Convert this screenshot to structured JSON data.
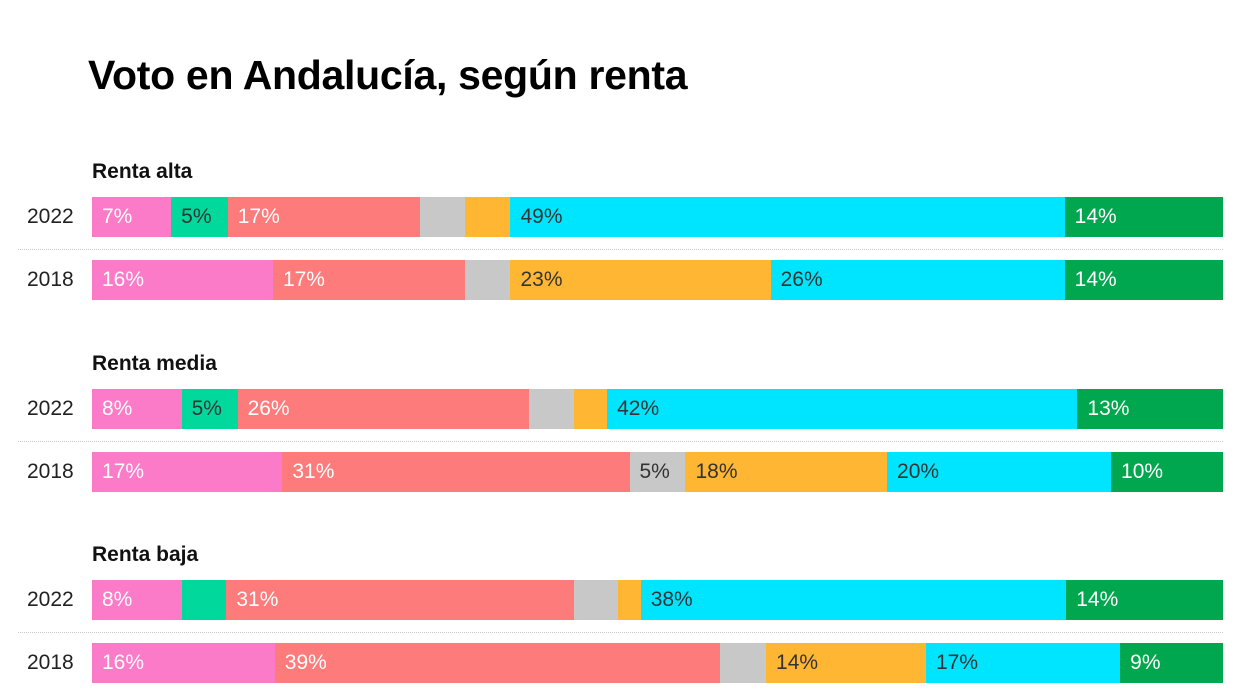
{
  "title": "Voto en Andalucía, según renta",
  "chart_data": {
    "type": "bar",
    "orientation": "horizontal",
    "stacked": true,
    "total": 100,
    "colors": {
      "pink": "#fb7bc8",
      "teal": "#00d89c",
      "red": "#fd7b7b",
      "gray": "#c8c8c8",
      "orange": "#ffb733",
      "cyan": "#00e5ff",
      "green": "#00a74e"
    },
    "label_colors": {
      "pink": "#ffffff",
      "teal": "#333333",
      "red": "#ffffff",
      "gray": "#333333",
      "orange": "#333333",
      "cyan": "#333333",
      "green": "#ffffff"
    },
    "groups": [
      {
        "label": "Renta alta",
        "rows": [
          {
            "year": "2022",
            "segments": [
              {
                "color": "pink",
                "value": 7,
                "label": "7%"
              },
              {
                "color": "teal",
                "value": 5,
                "label": "5%"
              },
              {
                "color": "red",
                "value": 17,
                "label": "17%"
              },
              {
                "color": "gray",
                "value": 4,
                "label": ""
              },
              {
                "color": "orange",
                "value": 4,
                "label": ""
              },
              {
                "color": "cyan",
                "value": 49,
                "label": "49%"
              },
              {
                "color": "green",
                "value": 14,
                "label": "14%"
              }
            ]
          },
          {
            "year": "2018",
            "segments": [
              {
                "color": "pink",
                "value": 16,
                "label": "16%"
              },
              {
                "color": "red",
                "value": 17,
                "label": "17%"
              },
              {
                "color": "gray",
                "value": 4,
                "label": ""
              },
              {
                "color": "orange",
                "value": 23,
                "label": "23%"
              },
              {
                "color": "cyan",
                "value": 26,
                "label": "26%"
              },
              {
                "color": "green",
                "value": 14,
                "label": "14%"
              }
            ]
          }
        ]
      },
      {
        "label": "Renta media",
        "rows": [
          {
            "year": "2022",
            "segments": [
              {
                "color": "pink",
                "value": 8,
                "label": "8%"
              },
              {
                "color": "teal",
                "value": 5,
                "label": "5%"
              },
              {
                "color": "red",
                "value": 26,
                "label": "26%"
              },
              {
                "color": "gray",
                "value": 4,
                "label": ""
              },
              {
                "color": "orange",
                "value": 3,
                "label": ""
              },
              {
                "color": "cyan",
                "value": 42,
                "label": "42%"
              },
              {
                "color": "green",
                "value": 13,
                "label": "13%"
              }
            ]
          },
          {
            "year": "2018",
            "segments": [
              {
                "color": "pink",
                "value": 17,
                "label": "17%"
              },
              {
                "color": "red",
                "value": 31,
                "label": "31%"
              },
              {
                "color": "gray",
                "value": 5,
                "label": "5%"
              },
              {
                "color": "orange",
                "value": 18,
                "label": "18%"
              },
              {
                "color": "cyan",
                "value": 20,
                "label": "20%"
              },
              {
                "color": "green",
                "value": 10,
                "label": "10%"
              }
            ]
          }
        ]
      },
      {
        "label": "Renta baja",
        "rows": [
          {
            "year": "2022",
            "segments": [
              {
                "color": "pink",
                "value": 8,
                "label": "8%"
              },
              {
                "color": "teal",
                "value": 4,
                "label": ""
              },
              {
                "color": "red",
                "value": 31,
                "label": "31%"
              },
              {
                "color": "gray",
                "value": 4,
                "label": ""
              },
              {
                "color": "orange",
                "value": 2,
                "label": ""
              },
              {
                "color": "cyan",
                "value": 38,
                "label": "38%"
              },
              {
                "color": "green",
                "value": 14,
                "label": "14%"
              }
            ]
          },
          {
            "year": "2018",
            "segments": [
              {
                "color": "pink",
                "value": 16,
                "label": "16%"
              },
              {
                "color": "red",
                "value": 39,
                "label": "39%"
              },
              {
                "color": "gray",
                "value": 4,
                "label": ""
              },
              {
                "color": "orange",
                "value": 14,
                "label": "14%"
              },
              {
                "color": "cyan",
                "value": 17,
                "label": "17%"
              },
              {
                "color": "green",
                "value": 9,
                "label": "9%"
              }
            ]
          }
        ]
      }
    ]
  }
}
